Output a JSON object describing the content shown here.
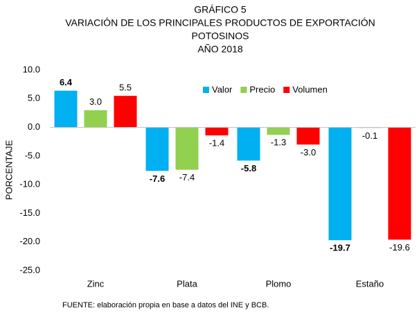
{
  "chart_data": {
    "type": "bar",
    "title_lines": [
      "GRÁFICO 5",
      "VARIACIÓN DE LOS PRINCIPALES PRODUCTOS DE EXPORTACIÓN",
      "POTOSINOS",
      "AÑO 2018"
    ],
    "y_label": "PORCENTAJE",
    "categories": [
      "Zinc",
      "Plata",
      "Plomo",
      "Estaño"
    ],
    "series": [
      {
        "name": "Valor",
        "color": "#00b0f0",
        "values": [
          6.4,
          -7.6,
          -5.8,
          -19.7
        ],
        "value_labels": [
          "6.4",
          "-7.6",
          "-5.8",
          "-19.7"
        ]
      },
      {
        "name": "Precio",
        "color": "#92d050",
        "values": [
          3.0,
          -7.4,
          -1.3,
          -0.1
        ],
        "value_labels": [
          "3.0",
          "-7.4",
          "-1.3",
          "-0.1"
        ]
      },
      {
        "name": "Volumen",
        "color": "#ff0000",
        "values": [
          5.5,
          -1.4,
          -3.0,
          -19.6
        ],
        "value_labels": [
          "5.5",
          "-1.4",
          "-3.0",
          "-19.6"
        ]
      }
    ],
    "ylim": [
      -25,
      10
    ],
    "yticks": [
      {
        "value": 10,
        "label": "10.0"
      },
      {
        "value": 5,
        "label": "5.0"
      },
      {
        "value": 0,
        "label": "0.0"
      },
      {
        "value": -5,
        "label": "-5.0"
      },
      {
        "value": -10,
        "label": "-10.0"
      },
      {
        "value": -15,
        "label": "-15.0"
      },
      {
        "value": -20,
        "label": "-20.0"
      },
      {
        "value": -25,
        "label": "-25.0"
      }
    ],
    "grid": false,
    "legend": "top",
    "source": "FUENTE: elaboración propia en base a datos del INE y BCB."
  }
}
